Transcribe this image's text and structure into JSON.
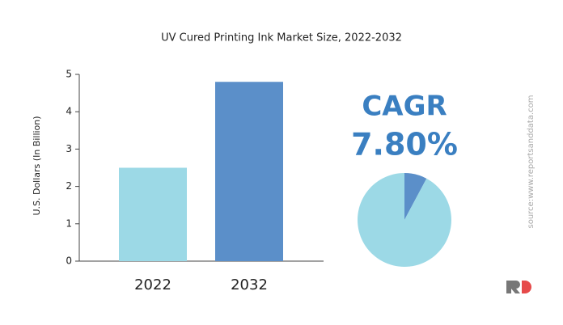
{
  "chart_data": [
    {
      "type": "bar",
      "title": "UV Cured Printing Ink Market Size, 2022-2032",
      "y_label": "U.S. Dollars (In Billion)",
      "categories": [
        "2022",
        "2032"
      ],
      "values": [
        2.5,
        4.8
      ],
      "colors": [
        "#9cd9e6",
        "#5b8fc9"
      ],
      "ylim": [
        0,
        5
      ],
      "yticks": [
        0,
        1,
        2,
        3,
        4,
        5
      ],
      "grid": false
    },
    {
      "type": "pie",
      "title": "CAGR",
      "values": [
        7.8,
        92.2
      ],
      "value_labels": [
        "7.80%",
        null
      ],
      "colors": [
        "#5b8fc9",
        "#9cd9e6"
      ]
    }
  ],
  "source": "source:www.reportsanddata.com"
}
